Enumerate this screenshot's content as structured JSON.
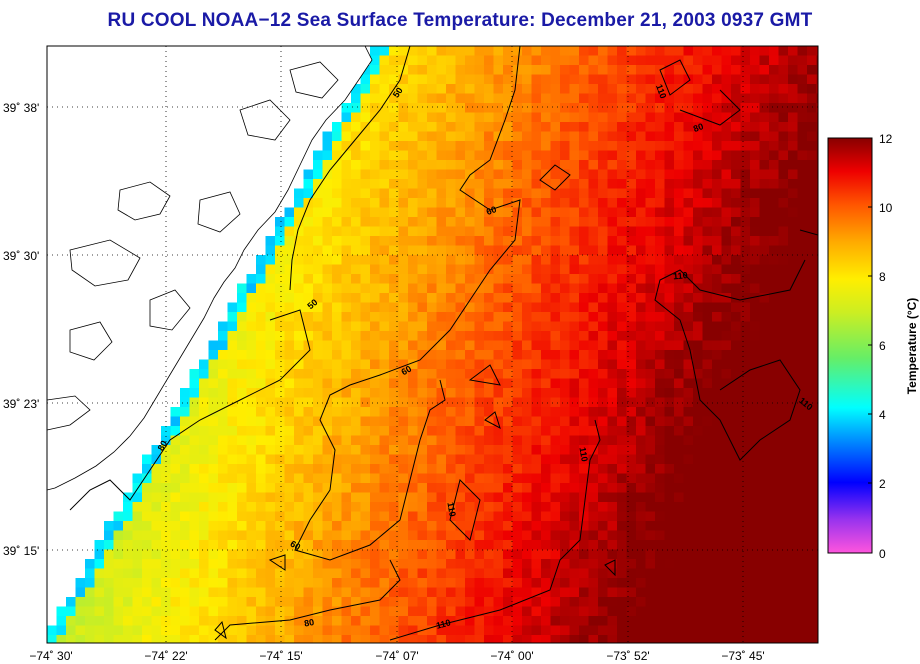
{
  "title": "RU COOL  NOAA−12  Sea Surface Temperature:  December 21, 2003 0937 GMT",
  "map": {
    "lat_labels": [
      "39˚ 38'",
      "39˚ 30'",
      "39˚ 23'",
      "39˚ 15'"
    ],
    "lon_labels": [
      "−74˚ 30'",
      "−74˚ 22'",
      "−74˚ 15'",
      "−74˚ 07'",
      "−74˚ 00'",
      "−73˚ 52'",
      "−73˚ 45'"
    ],
    "contour_labels": [
      "50",
      "60",
      "110",
      "80",
      "50",
      "60",
      "110",
      "80",
      "110",
      "110",
      "110",
      "110",
      "110",
      "80",
      "60",
      "50",
      "50"
    ]
  },
  "colorbar": {
    "label": "Temperature (°C)",
    "ticks": [
      "12",
      "10",
      "8",
      "6",
      "4",
      "2",
      "0"
    ],
    "range": [
      0,
      12
    ],
    "colors": [
      "#ff33cc",
      "#2222ff",
      "#00ddff",
      "#77ee55",
      "#ffee00",
      "#ff8800",
      "#ee1100",
      "#880000"
    ]
  }
}
